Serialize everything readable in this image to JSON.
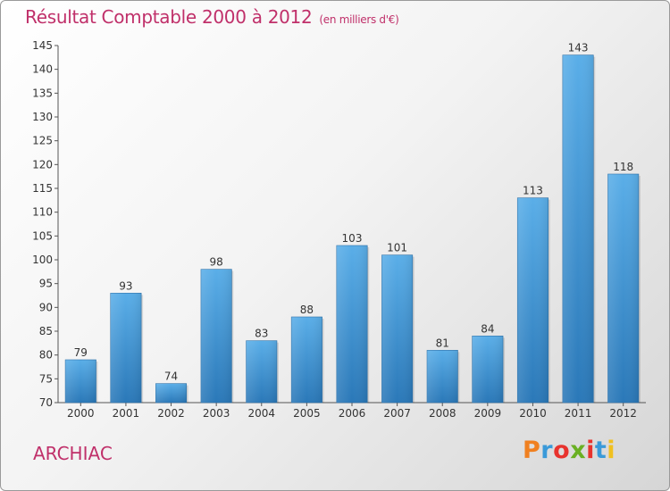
{
  "header": {
    "title": "Résultat Comptable 2000 à 2012",
    "subtitle": "(en milliers d'€)"
  },
  "footer": {
    "commune": "ARCHIAC",
    "logo_text": "Proxiti",
    "logo_colors": [
      "#f08020",
      "#3a9ad9",
      "#e8332e",
      "#6ab023",
      "#e8332e",
      "#3a9ad9",
      "#f0c020"
    ]
  },
  "colors": {
    "bar_top": "#5aaee8",
    "bar_bottom": "#2a78b8",
    "text_accent": "#c0306a"
  },
  "chart_data": {
    "type": "bar",
    "categories": [
      "2000",
      "2001",
      "2002",
      "2003",
      "2004",
      "2005",
      "2006",
      "2007",
      "2008",
      "2009",
      "2010",
      "2011",
      "2012"
    ],
    "values": [
      79,
      93,
      74,
      98,
      83,
      88,
      103,
      101,
      81,
      84,
      113,
      143,
      118
    ],
    "title": "Résultat Comptable 2000 à 2012",
    "xlabel": "",
    "ylabel": "",
    "ylim": [
      70,
      145
    ],
    "yticks": [
      70,
      75,
      80,
      85,
      90,
      95,
      100,
      105,
      110,
      115,
      120,
      125,
      130,
      135,
      140,
      145
    ],
    "grid": false,
    "legend": "none"
  }
}
